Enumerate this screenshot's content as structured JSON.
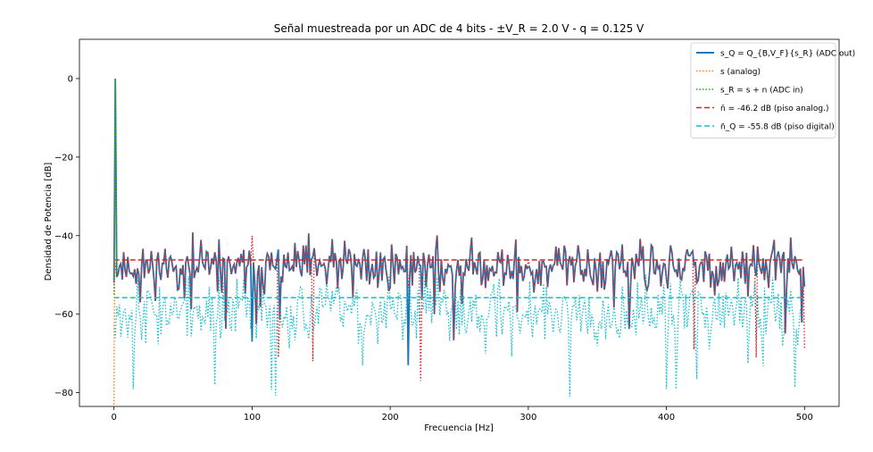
{
  "chart_data": {
    "type": "line",
    "title": "Señal muestreada por un ADC de 4 bits - ±V_R = 2.0 V - q = 0.125 V",
    "xlabel": "Frecuencia [Hz]",
    "ylabel": "Densidad de Potencia [dB]",
    "xlim": [
      -25,
      525
    ],
    "ylim": [
      -83.5,
      10
    ],
    "xticks": [
      0,
      100,
      200,
      300,
      400,
      500
    ],
    "yticks": [
      0,
      -20,
      -40,
      -60,
      -80
    ],
    "grid": false,
    "legend_position": "top-right",
    "signal_frequency_hz": 1,
    "peak_db": 0,
    "series": [
      {
        "name": "s_Q = Q_{B,V_F}{s_R} (ADC out)",
        "color": "#1f77b4",
        "style": "solid",
        "width": 2,
        "level_db": -48,
        "spread_db": 4,
        "seed": 11,
        "sample_points": [
          [
            0,
            -52
          ],
          [
            1,
            0
          ],
          [
            100,
            -67
          ],
          [
            213,
            -73
          ],
          [
            300,
            -48
          ],
          [
            400,
            -51
          ],
          [
            500,
            -53
          ]
        ]
      },
      {
        "name": "s (analog)",
        "color": "#ff7f0e",
        "style": "dotted",
        "width": 1.5,
        "sample_points": [
          [
            0,
            -83
          ],
          [
            1,
            0
          ]
        ]
      },
      {
        "name": "s_R = s + n (ADC in)",
        "color": "#2ca02c",
        "style": "dotted",
        "width": 1.5,
        "sample_points": [
          [
            0,
            -55
          ],
          [
            1,
            0
          ],
          [
            2,
            -50
          ]
        ]
      },
      {
        "name": "n̄ = -46.2 dB (piso analog.)",
        "color": "#d62728",
        "style": "dashed",
        "width": 1.5,
        "level_db": -46.2
      },
      {
        "name": "n̄_Q = -55.8 dB (piso digital)",
        "color": "#17becf",
        "style": "dashed",
        "width": 1.5,
        "level_db": -55.8
      }
    ],
    "noise_traces": [
      {
        "name": "analog noise trace (red dotted)",
        "color": "#d62728",
        "level_db": -48,
        "spread_db": 4,
        "seed": 11,
        "sample_points": [
          [
            119,
            -71
          ],
          [
            144,
            -72
          ],
          [
            222,
            -77
          ],
          [
            420,
            -69
          ],
          [
            465,
            -71
          ],
          [
            500,
            -69
          ]
        ]
      },
      {
        "name": "digital noise trace (cyan dotted)",
        "color": "#17becf",
        "level_db": -59,
        "spread_db": 5,
        "seed": 37,
        "sample_points": [
          [
            14,
            -79
          ],
          [
            73,
            -78
          ],
          [
            180,
            -73
          ],
          [
            330,
            -81
          ],
          [
            400,
            -79
          ],
          [
            500,
            -62
          ]
        ]
      }
    ],
    "legend": [
      {
        "label": "s_Q = Q_{B,V_F}{s_R} (ADC out)",
        "color": "#1f77b4",
        "style": "solid"
      },
      {
        "label": "s (analog)",
        "color": "#ff7f0e",
        "style": "dotted"
      },
      {
        "label": "s_R = s + n  (ADC in)",
        "color": "#2ca02c",
        "style": "dotted"
      },
      {
        "label": "n̄ = -46.2 dB (piso analog.)",
        "color": "#d62728",
        "style": "dashed"
      },
      {
        "label": "n̄_Q = -55.8 dB (piso digital)",
        "color": "#17becf",
        "style": "dashed"
      }
    ]
  }
}
